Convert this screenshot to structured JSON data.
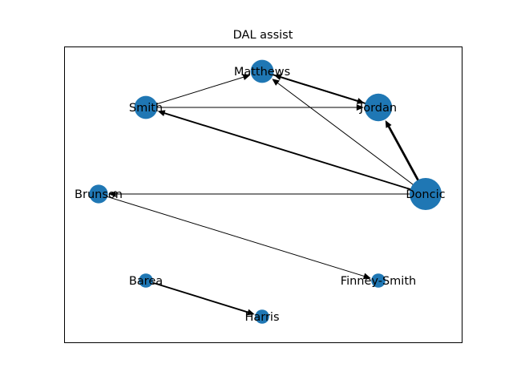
{
  "title": "DAL assist",
  "colors": {
    "node": "#1f77b4",
    "edge": "#000000",
    "frame": "#000000",
    "label": "#000000",
    "background": "#ffffff"
  },
  "nodes": [
    {
      "id": "Matthews",
      "label": "Matthews",
      "size": 3
    },
    {
      "id": "Smith",
      "label": "Smith",
      "size": 3
    },
    {
      "id": "Jordan",
      "label": "Jordan",
      "size": 4
    },
    {
      "id": "Brunson",
      "label": "Brunson",
      "size": 2
    },
    {
      "id": "Doncic",
      "label": "Doncic",
      "size": 5
    },
    {
      "id": "Barea",
      "label": "Barea",
      "size": 1
    },
    {
      "id": "Finney-Smith",
      "label": "Finney-Smith",
      "size": 1
    },
    {
      "id": "Harris",
      "label": "Harris",
      "size": 1
    }
  ],
  "edges": [
    {
      "source": "Smith",
      "target": "Matthews",
      "weight": 1
    },
    {
      "source": "Smith",
      "target": "Jordan",
      "weight": 1
    },
    {
      "source": "Matthews",
      "target": "Jordan",
      "weight": 2
    },
    {
      "source": "Jordan",
      "target": "Matthews",
      "weight": 2
    },
    {
      "source": "Doncic",
      "target": "Matthews",
      "weight": 1
    },
    {
      "source": "Doncic",
      "target": "Smith",
      "weight": 2
    },
    {
      "source": "Doncic",
      "target": "Jordan",
      "weight": 3
    },
    {
      "source": "Doncic",
      "target": "Brunson",
      "weight": 1
    },
    {
      "source": "Brunson",
      "target": "Finney-Smith",
      "weight": 1
    },
    {
      "source": "Barea",
      "target": "Harris",
      "weight": 2
    }
  ]
}
